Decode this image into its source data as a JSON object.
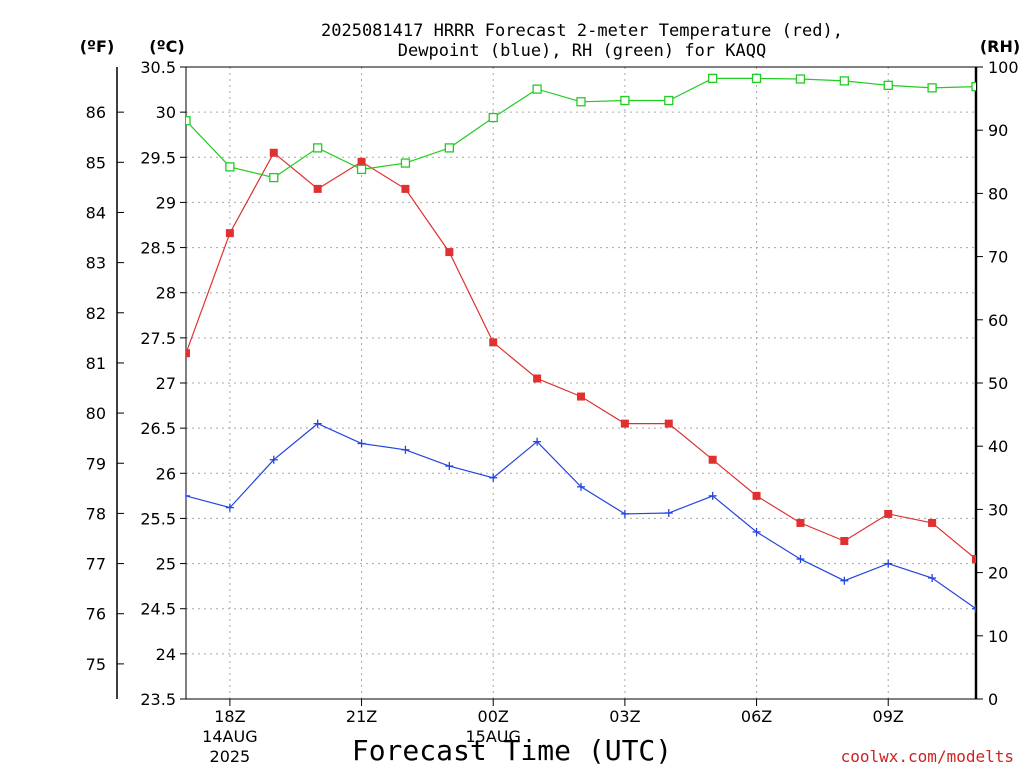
{
  "title": {
    "line1": "2025081417 HRRR Forecast 2-meter Temperature (red),",
    "line2": "Dewpoint (blue), RH (green) for KAQQ"
  },
  "units": {
    "fahrenheit": "(ºF)",
    "celsius": "(ºC)",
    "rh": "(RH)"
  },
  "credit": "coolwx.com/modelts",
  "colors": {
    "temperature": "#e03030",
    "dewpoint": "#2244e0",
    "rh": "#22cc22",
    "grid": "#a8a8a8",
    "axis": "#000000"
  },
  "chart_data": {
    "type": "line",
    "xlabel": "Forecast Time (UTC)",
    "x": [
      "17Z",
      "18Z",
      "19Z",
      "20Z",
      "21Z",
      "22Z",
      "23Z",
      "00Z",
      "01Z",
      "02Z",
      "03Z",
      "04Z",
      "05Z",
      "06Z",
      "07Z",
      "08Z",
      "09Z",
      "10Z",
      "11Z"
    ],
    "x_ticks": [
      {
        "label": "18Z",
        "sub1": "14AUG",
        "sub2": "2025"
      },
      {
        "label": "21Z",
        "sub1": "",
        "sub2": ""
      },
      {
        "label": "00Z",
        "sub1": "15AUG",
        "sub2": ""
      },
      {
        "label": "03Z",
        "sub1": "",
        "sub2": ""
      },
      {
        "label": "06Z",
        "sub1": "",
        "sub2": ""
      },
      {
        "label": "09Z",
        "sub1": "",
        "sub2": ""
      }
    ],
    "x_tick_hours": [
      1,
      4,
      7,
      10,
      13,
      16
    ],
    "ylim_celsius": [
      23.5,
      30.5
    ],
    "celsius_ticks": [
      "23.5",
      "24",
      "24.5",
      "25",
      "25.5",
      "26",
      "26.5",
      "27",
      "27.5",
      "28",
      "28.5",
      "29",
      "29.5",
      "30",
      "30.5"
    ],
    "fahrenheit_ticks": [
      "75",
      "76",
      "77",
      "78",
      "79",
      "80",
      "81",
      "82",
      "83",
      "84",
      "85",
      "86"
    ],
    "ylim_rh": [
      0,
      100
    ],
    "rh_ticks": [
      "0",
      "10",
      "20",
      "30",
      "40",
      "50",
      "60",
      "70",
      "80",
      "90",
      "100"
    ],
    "grid": true,
    "series": [
      {
        "name": "Temperature (red)",
        "axis": "celsius",
        "marker": "square-filled",
        "values": [
          27.33,
          28.66,
          29.55,
          29.15,
          29.45,
          29.15,
          28.45,
          27.45,
          27.05,
          26.85,
          26.55,
          26.55,
          26.15,
          25.75,
          25.45,
          25.25,
          25.55,
          25.45,
          25.05
        ]
      },
      {
        "name": "Dewpoint (blue)",
        "axis": "celsius",
        "marker": "plus",
        "values": [
          25.75,
          25.62,
          26.15,
          26.55,
          26.33,
          26.26,
          26.08,
          25.95,
          26.35,
          25.85,
          25.55,
          25.56,
          25.75,
          25.35,
          25.05,
          24.81,
          25.0,
          24.84,
          24.5
        ]
      },
      {
        "name": "RH (green)",
        "axis": "rh",
        "marker": "square-open",
        "values": [
          91.5,
          84.2,
          82.5,
          87.2,
          83.8,
          84.8,
          87.2,
          92.0,
          96.5,
          94.5,
          94.7,
          94.7,
          98.2,
          98.2,
          98.1,
          97.8,
          97.1,
          96.7,
          96.9
        ]
      }
    ]
  }
}
